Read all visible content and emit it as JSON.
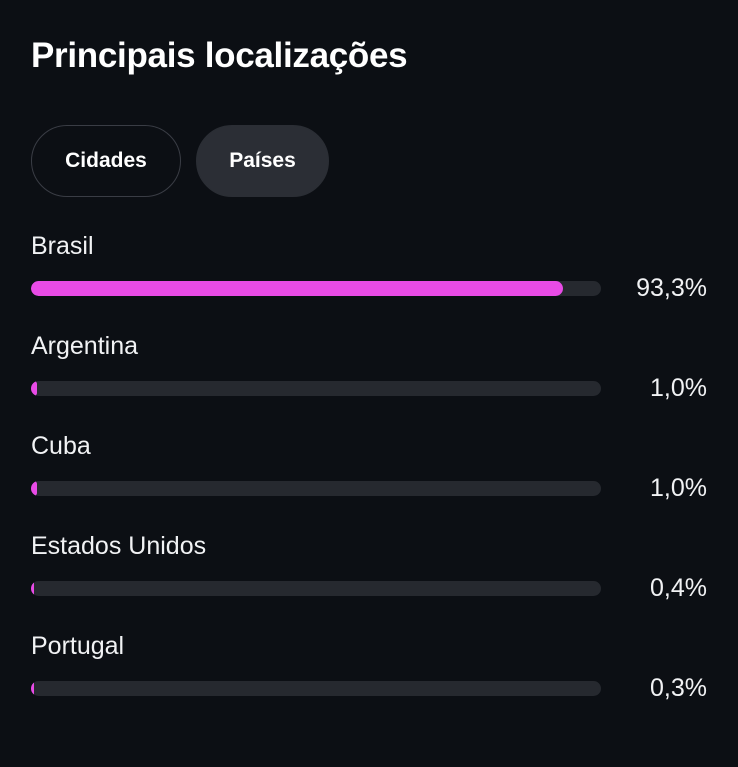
{
  "title": "Principais localizações",
  "tabs": [
    {
      "label": "Cidades",
      "active": false
    },
    {
      "label": "Países",
      "active": true
    }
  ],
  "accent_color": "#e94be6",
  "locations": [
    {
      "name": "Brasil",
      "percent_label": "93,3%",
      "fraction": 0.933
    },
    {
      "name": "Argentina",
      "percent_label": "1,0%",
      "fraction": 0.01
    },
    {
      "name": "Cuba",
      "percent_label": "1,0%",
      "fraction": 0.01
    },
    {
      "name": "Estados Unidos",
      "percent_label": "0,4%",
      "fraction": 0.004
    },
    {
      "name": "Portugal",
      "percent_label": "0,3%",
      "fraction": 0.003
    }
  ]
}
